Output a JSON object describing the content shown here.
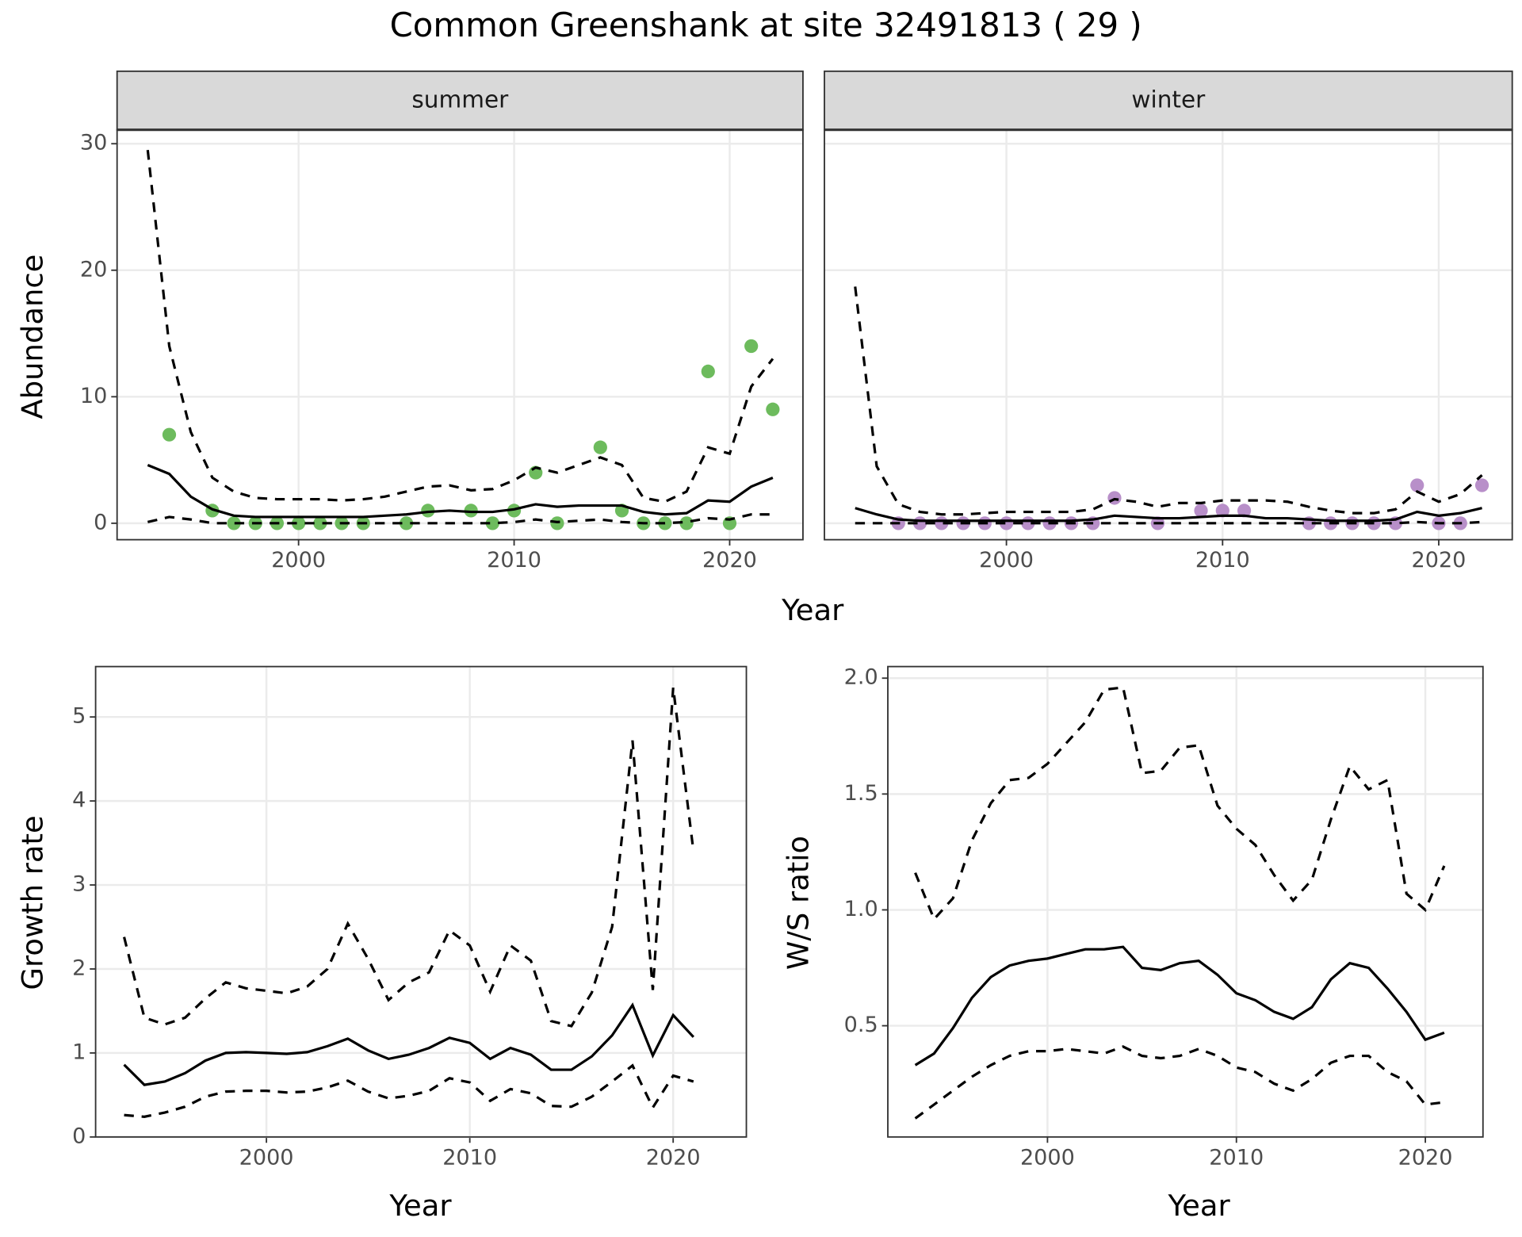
{
  "title": "Common Greenshank at site 32491813 ( 29 )",
  "chart_data": [
    {
      "type": "line",
      "facet": "summer",
      "xlabel": "Year",
      "ylabel": "Abundance",
      "x": [
        1993,
        1994,
        1995,
        1996,
        1997,
        1998,
        1999,
        2000,
        2001,
        2002,
        2003,
        2004,
        2005,
        2006,
        2007,
        2008,
        2009,
        2010,
        2011,
        2012,
        2013,
        2014,
        2015,
        2016,
        2017,
        2018,
        2019,
        2020,
        2021,
        2022
      ],
      "xlim": [
        1991.58,
        2023.4
      ],
      "xticks": [
        2000,
        2010,
        2020
      ],
      "ylim": [
        -1.3,
        31.1
      ],
      "yticks": [
        0,
        10,
        20,
        30
      ],
      "grid": true,
      "ytick_labels": true,
      "series": [
        {
          "style": "points",
          "color": "#6dbb5d",
          "values": [
            null,
            7,
            null,
            1,
            0,
            0,
            0,
            0,
            0,
            0,
            0,
            null,
            0,
            1,
            null,
            1,
            0,
            1,
            4,
            0,
            null,
            6,
            1,
            0,
            0,
            0,
            12,
            0,
            14,
            9
          ]
        },
        {
          "style": "solid",
          "color": "#000000",
          "values": [
            4.6,
            3.9,
            2.1,
            1.1,
            0.6,
            0.5,
            0.5,
            0.5,
            0.5,
            0.5,
            0.5,
            0.6,
            0.7,
            0.9,
            1.0,
            0.9,
            0.9,
            1.1,
            1.5,
            1.3,
            1.4,
            1.4,
            1.4,
            0.9,
            0.7,
            0.8,
            1.8,
            1.7,
            2.9,
            3.6
          ]
        },
        {
          "style": "dashed",
          "color": "#000000",
          "values": [
            29.5,
            14,
            7.2,
            3.6,
            2.5,
            2.0,
            1.9,
            1.9,
            1.9,
            1.8,
            1.9,
            2.1,
            2.5,
            2.9,
            3.0,
            2.6,
            2.7,
            3.4,
            4.4,
            4.0,
            4.6,
            5.2,
            4.6,
            2.0,
            1.7,
            2.5,
            6.0,
            5.5,
            10.8,
            13
          ]
        },
        {
          "style": "dashed",
          "color": "#000000",
          "values": [
            0.1,
            0.5,
            0.3,
            0,
            0,
            0,
            0,
            0,
            0,
            0,
            0,
            0,
            0,
            0,
            0,
            0,
            0,
            0.1,
            0.3,
            0.1,
            0.2,
            0.3,
            0.1,
            0,
            0,
            0.1,
            0.4,
            0.3,
            0.7,
            0.7
          ]
        }
      ]
    },
    {
      "type": "line",
      "facet": "winter",
      "x": [
        1993,
        1994,
        1995,
        1996,
        1997,
        1998,
        1999,
        2000,
        2001,
        2002,
        2003,
        2004,
        2005,
        2006,
        2007,
        2008,
        2009,
        2010,
        2011,
        2012,
        2013,
        2014,
        2015,
        2016,
        2017,
        2018,
        2019,
        2020,
        2021,
        2022
      ],
      "xlim": [
        1991.58,
        2023.4
      ],
      "xticks": [
        2000,
        2010,
        2020
      ],
      "ylim": [
        -1.3,
        31.1
      ],
      "yticks": [
        0,
        10,
        20,
        30
      ],
      "grid": true,
      "ytick_labels": false,
      "series": [
        {
          "style": "points",
          "color": "#b88fc9",
          "values": [
            null,
            null,
            0,
            0,
            0,
            0,
            0,
            0,
            0,
            0,
            0,
            0,
            2,
            null,
            0,
            null,
            1,
            1,
            1,
            null,
            null,
            0,
            0,
            0,
            0,
            0,
            3,
            0,
            0,
            3
          ]
        },
        {
          "style": "solid",
          "color": "#000000",
          "values": [
            1.2,
            0.7,
            0.3,
            0.2,
            0.2,
            0.2,
            0.2,
            0.2,
            0.2,
            0.2,
            0.2,
            0.3,
            0.6,
            0.5,
            0.4,
            0.4,
            0.5,
            0.6,
            0.6,
            0.4,
            0.4,
            0.3,
            0.2,
            0.2,
            0.2,
            0.3,
            0.9,
            0.6,
            0.8,
            1.2
          ]
        },
        {
          "style": "dashed",
          "color": "#000000",
          "values": [
            18.7,
            4.5,
            1.5,
            0.9,
            0.7,
            0.7,
            0.8,
            0.9,
            0.9,
            0.9,
            0.9,
            1.1,
            1.9,
            1.7,
            1.3,
            1.6,
            1.6,
            1.8,
            1.8,
            1.8,
            1.7,
            1.3,
            1.0,
            0.8,
            0.8,
            1.1,
            2.5,
            1.7,
            2.3,
            3.8
          ]
        },
        {
          "style": "dashed",
          "color": "#000000",
          "values": [
            0,
            0,
            0,
            0,
            0,
            0,
            0,
            0,
            0,
            0,
            0,
            0,
            0,
            0,
            0,
            0,
            0,
            0,
            0,
            0,
            0,
            0,
            0,
            0,
            0,
            0,
            0.1,
            0,
            0,
            0.1
          ]
        }
      ]
    },
    {
      "type": "line",
      "xlabel": "Year",
      "ylabel": "Growth rate",
      "x": [
        1993,
        1994,
        1995,
        1996,
        1997,
        1998,
        1999,
        2000,
        2001,
        2002,
        2003,
        2004,
        2005,
        2006,
        2007,
        2008,
        2009,
        2010,
        2011,
        2012,
        2013,
        2014,
        2015,
        2016,
        2017,
        2018,
        2019,
        2020,
        2021
      ],
      "xlim": [
        1991.6,
        2023.6
      ],
      "xticks": [
        2000,
        2010,
        2020
      ],
      "ylim": [
        0,
        5.6
      ],
      "yticks": [
        0,
        1,
        2,
        3,
        4,
        5
      ],
      "grid": true,
      "ytick_labels": true,
      "series": [
        {
          "style": "solid",
          "color": "#000000",
          "values": [
            0.86,
            0.62,
            0.66,
            0.76,
            0.91,
            1.0,
            1.01,
            1.0,
            0.99,
            1.01,
            1.08,
            1.17,
            1.03,
            0.93,
            0.98,
            1.06,
            1.18,
            1.12,
            0.93,
            1.06,
            0.98,
            0.8,
            0.8,
            0.96,
            1.21,
            1.57,
            0.97,
            1.45,
            1.19
          ]
        },
        {
          "style": "dashed",
          "color": "#000000",
          "values": [
            2.38,
            1.42,
            1.34,
            1.42,
            1.65,
            1.84,
            1.77,
            1.74,
            1.71,
            1.79,
            2.0,
            2.54,
            2.12,
            1.63,
            1.84,
            1.96,
            2.46,
            2.28,
            1.73,
            2.28,
            2.1,
            1.38,
            1.32,
            1.72,
            2.5,
            4.72,
            1.75,
            5.35,
            3.4
          ]
        },
        {
          "style": "dashed",
          "color": "#000000",
          "values": [
            0.26,
            0.24,
            0.29,
            0.36,
            0.48,
            0.54,
            0.55,
            0.55,
            0.53,
            0.54,
            0.59,
            0.67,
            0.54,
            0.46,
            0.49,
            0.55,
            0.7,
            0.65,
            0.43,
            0.57,
            0.52,
            0.37,
            0.36,
            0.48,
            0.66,
            0.85,
            0.35,
            0.73,
            0.66
          ]
        }
      ]
    },
    {
      "type": "line",
      "xlabel": "Year",
      "ylabel": "W/S ratio",
      "x": [
        1993,
        1994,
        1995,
        1996,
        1997,
        1998,
        1999,
        2000,
        2001,
        2002,
        2003,
        2004,
        2005,
        2006,
        2007,
        2008,
        2009,
        2010,
        2011,
        2012,
        2013,
        2014,
        2015,
        2016,
        2017,
        2018,
        2019,
        2020,
        2021
      ],
      "xlim": [
        1991.55,
        2023.05
      ],
      "xticks": [
        2000,
        2010,
        2020
      ],
      "ylim": [
        0.02,
        2.05
      ],
      "yticks": [
        0.5,
        {
          "value": 1.0,
          "label": "1.0"
        },
        1.5,
        {
          "value": 2.0,
          "label": "2.0"
        }
      ],
      "grid": true,
      "ytick_labels": true,
      "series": [
        {
          "style": "solid",
          "color": "#000000",
          "values": [
            0.33,
            0.38,
            0.49,
            0.62,
            0.71,
            0.76,
            0.78,
            0.79,
            0.81,
            0.83,
            0.83,
            0.84,
            0.75,
            0.74,
            0.77,
            0.78,
            0.72,
            0.64,
            0.61,
            0.56,
            0.53,
            0.58,
            0.7,
            0.77,
            0.75,
            0.66,
            0.56,
            0.44,
            0.47
          ]
        },
        {
          "style": "dashed",
          "color": "#000000",
          "values": [
            1.16,
            0.96,
            1.05,
            1.3,
            1.46,
            1.56,
            1.57,
            1.63,
            1.72,
            1.81,
            1.95,
            1.96,
            1.59,
            1.6,
            1.7,
            1.71,
            1.45,
            1.35,
            1.28,
            1.15,
            1.04,
            1.13,
            1.39,
            1.62,
            1.52,
            1.56,
            1.07,
            1.0,
            1.19
          ]
        },
        {
          "style": "dashed",
          "color": "#000000",
          "values": [
            0.1,
            0.16,
            0.22,
            0.28,
            0.33,
            0.37,
            0.39,
            0.39,
            0.4,
            0.39,
            0.38,
            0.41,
            0.37,
            0.36,
            0.37,
            0.4,
            0.37,
            0.32,
            0.3,
            0.25,
            0.22,
            0.27,
            0.34,
            0.37,
            0.37,
            0.3,
            0.26,
            0.16,
            0.17
          ]
        }
      ]
    }
  ]
}
